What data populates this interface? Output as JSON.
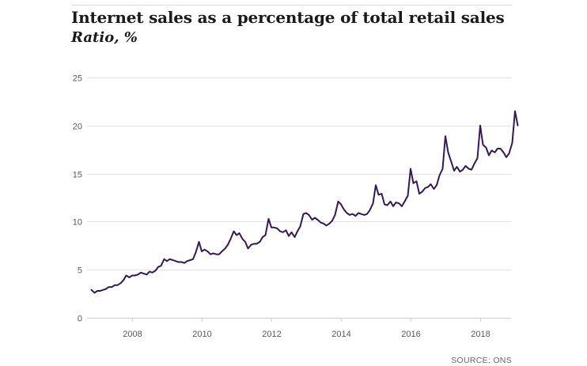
{
  "header": {
    "title": "Internet sales as a percentage of total retail sales",
    "subtitle": "Ratio, %"
  },
  "footer": {
    "source": "SOURCE: ONS"
  },
  "colors": {
    "line": "#35175a",
    "grid": "#e3e3e3",
    "axis_text": "#595959"
  },
  "chart_data": {
    "type": "line",
    "title": "Internet sales as a percentage of total retail sales",
    "subtitle": "Ratio, %",
    "xlabel": "",
    "ylabel": "",
    "xlim": [
      2006.83,
      2018.92
    ],
    "ylim": [
      0,
      25
    ],
    "yticks": [
      0,
      5,
      10,
      15,
      20,
      25
    ],
    "xticks": [
      2008,
      2010,
      2012,
      2014,
      2016,
      2018
    ],
    "grid": true,
    "series": [
      {
        "values": [
          [
            2006.83,
            2.9
          ],
          [
            2006.92,
            2.6
          ],
          [
            2007.0,
            2.8
          ],
          [
            2007.08,
            2.8
          ],
          [
            2007.17,
            2.9
          ],
          [
            2007.25,
            3.0
          ],
          [
            2007.33,
            3.2
          ],
          [
            2007.42,
            3.2
          ],
          [
            2007.5,
            3.4
          ],
          [
            2007.58,
            3.4
          ],
          [
            2007.67,
            3.6
          ],
          [
            2007.75,
            3.9
          ],
          [
            2007.83,
            4.4
          ],
          [
            2007.92,
            4.2
          ],
          [
            2008.0,
            4.4
          ],
          [
            2008.08,
            4.4
          ],
          [
            2008.17,
            4.5
          ],
          [
            2008.25,
            4.7
          ],
          [
            2008.33,
            4.6
          ],
          [
            2008.42,
            4.5
          ],
          [
            2008.5,
            4.8
          ],
          [
            2008.58,
            4.7
          ],
          [
            2008.67,
            4.9
          ],
          [
            2008.75,
            5.3
          ],
          [
            2008.83,
            5.4
          ],
          [
            2008.92,
            6.1
          ],
          [
            2009.0,
            5.9
          ],
          [
            2009.08,
            6.1
          ],
          [
            2009.17,
            6.0
          ],
          [
            2009.25,
            5.9
          ],
          [
            2009.33,
            5.8
          ],
          [
            2009.42,
            5.8
          ],
          [
            2009.5,
            5.7
          ],
          [
            2009.58,
            5.9
          ],
          [
            2009.67,
            6.0
          ],
          [
            2009.75,
            6.1
          ],
          [
            2009.83,
            6.8
          ],
          [
            2009.92,
            7.9
          ],
          [
            2010.0,
            6.9
          ],
          [
            2010.08,
            7.1
          ],
          [
            2010.17,
            6.9
          ],
          [
            2010.25,
            6.6
          ],
          [
            2010.33,
            6.7
          ],
          [
            2010.42,
            6.6
          ],
          [
            2010.5,
            6.6
          ],
          [
            2010.58,
            6.9
          ],
          [
            2010.67,
            7.2
          ],
          [
            2010.75,
            7.6
          ],
          [
            2010.83,
            8.2
          ],
          [
            2010.92,
            9.0
          ],
          [
            2011.0,
            8.6
          ],
          [
            2011.08,
            8.8
          ],
          [
            2011.17,
            8.2
          ],
          [
            2011.25,
            7.9
          ],
          [
            2011.33,
            7.2
          ],
          [
            2011.42,
            7.6
          ],
          [
            2011.5,
            7.7
          ],
          [
            2011.58,
            7.7
          ],
          [
            2011.67,
            7.9
          ],
          [
            2011.75,
            8.4
          ],
          [
            2011.83,
            8.6
          ],
          [
            2011.92,
            10.3
          ],
          [
            2012.0,
            9.4
          ],
          [
            2012.08,
            9.4
          ],
          [
            2012.17,
            9.3
          ],
          [
            2012.25,
            9.0
          ],
          [
            2012.33,
            8.9
          ],
          [
            2012.42,
            9.1
          ],
          [
            2012.5,
            8.5
          ],
          [
            2012.58,
            8.9
          ],
          [
            2012.67,
            8.4
          ],
          [
            2012.75,
            9.0
          ],
          [
            2012.83,
            9.5
          ],
          [
            2012.92,
            10.8
          ],
          [
            2013.0,
            10.9
          ],
          [
            2013.08,
            10.7
          ],
          [
            2013.17,
            10.2
          ],
          [
            2013.25,
            10.4
          ],
          [
            2013.33,
            10.2
          ],
          [
            2013.42,
            9.9
          ],
          [
            2013.5,
            9.8
          ],
          [
            2013.58,
            9.6
          ],
          [
            2013.67,
            9.8
          ],
          [
            2013.75,
            10.1
          ],
          [
            2013.83,
            10.7
          ],
          [
            2013.92,
            12.1
          ],
          [
            2014.0,
            11.8
          ],
          [
            2014.08,
            11.3
          ],
          [
            2014.17,
            10.9
          ],
          [
            2014.25,
            10.7
          ],
          [
            2014.33,
            10.8
          ],
          [
            2014.42,
            10.6
          ],
          [
            2014.5,
            10.9
          ],
          [
            2014.58,
            10.8
          ],
          [
            2014.67,
            10.7
          ],
          [
            2014.75,
            10.8
          ],
          [
            2014.83,
            11.2
          ],
          [
            2014.92,
            11.9
          ],
          [
            2015.0,
            13.8
          ],
          [
            2015.08,
            12.8
          ],
          [
            2015.17,
            12.9
          ],
          [
            2015.25,
            11.8
          ],
          [
            2015.33,
            11.7
          ],
          [
            2015.42,
            12.1
          ],
          [
            2015.5,
            11.6
          ],
          [
            2015.58,
            12.0
          ],
          [
            2015.67,
            11.9
          ],
          [
            2015.75,
            11.6
          ],
          [
            2015.83,
            12.1
          ],
          [
            2015.92,
            12.7
          ],
          [
            2016.0,
            15.5
          ],
          [
            2016.08,
            14.0
          ],
          [
            2016.17,
            14.2
          ],
          [
            2016.25,
            12.9
          ],
          [
            2016.33,
            13.1
          ],
          [
            2016.42,
            13.5
          ],
          [
            2016.5,
            13.6
          ],
          [
            2016.58,
            13.9
          ],
          [
            2016.67,
            13.4
          ],
          [
            2016.75,
            13.8
          ],
          [
            2016.83,
            14.8
          ],
          [
            2016.92,
            15.5
          ],
          [
            2017.0,
            18.9
          ],
          [
            2017.08,
            17.2
          ],
          [
            2017.17,
            16.2
          ],
          [
            2017.25,
            15.3
          ],
          [
            2017.33,
            15.7
          ],
          [
            2017.42,
            15.2
          ],
          [
            2017.5,
            15.4
          ],
          [
            2017.58,
            15.8
          ],
          [
            2017.67,
            15.5
          ],
          [
            2017.75,
            15.4
          ],
          [
            2017.83,
            16.0
          ],
          [
            2017.92,
            16.6
          ],
          [
            2018.0,
            20.0
          ],
          [
            2018.08,
            18.0
          ],
          [
            2018.17,
            17.7
          ],
          [
            2018.25,
            16.9
          ],
          [
            2018.33,
            17.4
          ],
          [
            2018.42,
            17.2
          ],
          [
            2018.5,
            17.6
          ],
          [
            2018.58,
            17.6
          ],
          [
            2018.67,
            17.2
          ],
          [
            2018.75,
            16.7
          ],
          [
            2018.83,
            17.1
          ],
          [
            2018.92,
            18.2
          ],
          [
            2019.0,
            21.5
          ],
          [
            2019.08,
            20.0
          ]
        ]
      }
    ]
  }
}
